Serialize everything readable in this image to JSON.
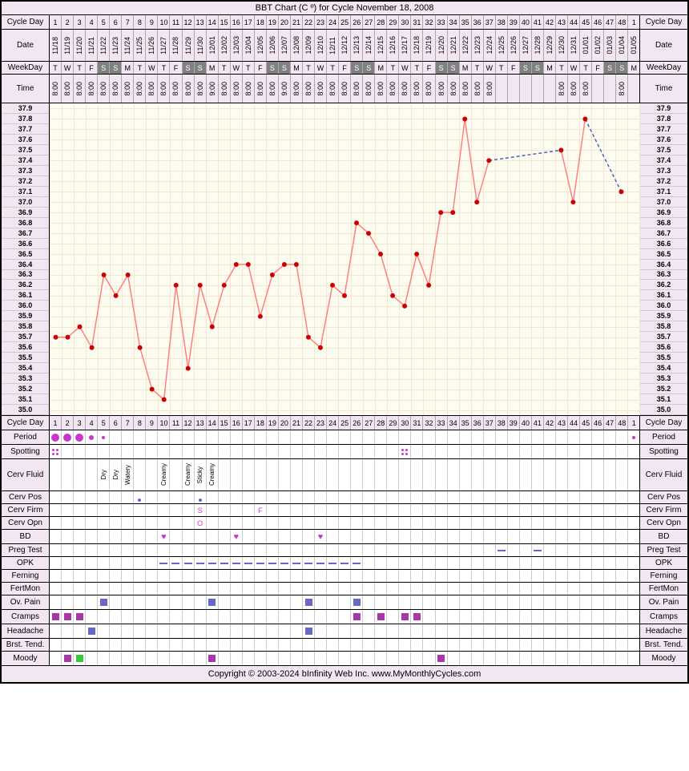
{
  "title": "BBT Chart (C º) for Cycle November 18, 2008",
  "footer": "Copyright © 2003-2024 bInfinity Web Inc.     www.MyMonthlyCycles.com",
  "labels": {
    "cycleDay": "Cycle Day",
    "date": "Date",
    "weekday": "WeekDay",
    "time": "Time",
    "period": "Period",
    "spotting": "Spotting",
    "cervFluid": "Cerv Fluid",
    "cervPos": "Cerv Pos",
    "cervFirm": "Cerv Firm",
    "cervOpn": "Cerv Opn",
    "bd": "BD",
    "pregTest": "Preg Test",
    "opk": "OPK",
    "ferning": "Ferning",
    "fertMon": "FertMon",
    "ovPain": "Ov. Pain",
    "cramps": "Cramps",
    "headache": "Headache",
    "brstTend": "Brst. Tend.",
    "moody": "Moody"
  },
  "chart": {
    "ymin": 35.0,
    "ymax": 37.9,
    "yticks": [
      "37.9",
      "37.8",
      "37.7",
      "37.6",
      "37.5",
      "37.4",
      "37.3",
      "37.2",
      "37.1",
      "37.0",
      "36.9",
      "36.8",
      "36.7",
      "36.6",
      "36.5",
      "36.4",
      "36.3",
      "36.2",
      "36.1",
      "36.0",
      "35.9",
      "35.8",
      "35.7",
      "35.6",
      "35.5",
      "35.4",
      "35.3",
      "35.2",
      "35.1",
      "35.0"
    ],
    "point_color": "#cc0000",
    "line_color": "#ff8080",
    "dashed_color": "#5060c0",
    "bg": "#fdfcf0",
    "grid_color": "#f5e6d0",
    "points": [
      {
        "day": 1,
        "t": 35.7
      },
      {
        "day": 2,
        "t": 35.7
      },
      {
        "day": 3,
        "t": 35.8
      },
      {
        "day": 4,
        "t": 35.6
      },
      {
        "day": 5,
        "t": 36.3
      },
      {
        "day": 6,
        "t": 36.1
      },
      {
        "day": 7,
        "t": 36.3
      },
      {
        "day": 8,
        "t": 35.6
      },
      {
        "day": 9,
        "t": 35.2
      },
      {
        "day": 10,
        "t": 35.1
      },
      {
        "day": 11,
        "t": 36.2
      },
      {
        "day": 12,
        "t": 35.4
      },
      {
        "day": 13,
        "t": 36.2
      },
      {
        "day": 14,
        "t": 35.8
      },
      {
        "day": 15,
        "t": 36.2
      },
      {
        "day": 16,
        "t": 36.4
      },
      {
        "day": 17,
        "t": 36.4
      },
      {
        "day": 18,
        "t": 35.9
      },
      {
        "day": 19,
        "t": 36.3
      },
      {
        "day": 20,
        "t": 36.4
      },
      {
        "day": 21,
        "t": 36.4
      },
      {
        "day": 22,
        "t": 35.7
      },
      {
        "day": 23,
        "t": 35.6
      },
      {
        "day": 24,
        "t": 36.2
      },
      {
        "day": 25,
        "t": 36.1
      },
      {
        "day": 26,
        "t": 36.8
      },
      {
        "day": 27,
        "t": 36.7
      },
      {
        "day": 28,
        "t": 36.5
      },
      {
        "day": 29,
        "t": 36.1
      },
      {
        "day": 30,
        "t": 36.0
      },
      {
        "day": 31,
        "t": 36.5
      },
      {
        "day": 32,
        "t": 36.2
      },
      {
        "day": 33,
        "t": 36.9
      },
      {
        "day": 34,
        "t": 36.9
      },
      {
        "day": 35,
        "t": 37.8
      },
      {
        "day": 36,
        "t": 37.0
      },
      {
        "day": 37,
        "t": 37.4
      },
      {
        "day": 43,
        "t": 37.5
      },
      {
        "day": 44,
        "t": 37.0
      },
      {
        "day": 45,
        "t": 37.8
      },
      {
        "day": 48,
        "t": 37.1
      }
    ],
    "segments": [
      {
        "from": 1,
        "to": 37,
        "dashed": false
      },
      {
        "from": 37,
        "to": 43,
        "dashed": true
      },
      {
        "from": 43,
        "to": 45,
        "dashed": false
      },
      {
        "from": 45,
        "to": 48,
        "dashed": true
      }
    ]
  },
  "days": {
    "count": 49,
    "cycleDays": [
      "1",
      "2",
      "3",
      "4",
      "5",
      "6",
      "7",
      "8",
      "9",
      "10",
      "11",
      "12",
      "13",
      "14",
      "15",
      "16",
      "17",
      "18",
      "19",
      "20",
      "21",
      "22",
      "23",
      "24",
      "25",
      "26",
      "27",
      "28",
      "29",
      "30",
      "31",
      "32",
      "33",
      "34",
      "35",
      "36",
      "37",
      "38",
      "39",
      "40",
      "41",
      "42",
      "43",
      "44",
      "45",
      "46",
      "47",
      "48",
      "1"
    ],
    "dates": [
      "11/18",
      "11/19",
      "11/20",
      "11/21",
      "11/22",
      "11/23",
      "11/24",
      "11/25",
      "11/26",
      "11/27",
      "11/28",
      "11/29",
      "11/30",
      "12/01",
      "12/02",
      "12/03",
      "12/04",
      "12/05",
      "12/06",
      "12/07",
      "12/08",
      "12/09",
      "12/10",
      "12/11",
      "12/12",
      "12/13",
      "12/14",
      "12/15",
      "12/16",
      "12/17",
      "12/18",
      "12/19",
      "12/20",
      "12/21",
      "12/22",
      "12/23",
      "12/24",
      "12/25",
      "12/26",
      "12/27",
      "12/28",
      "12/29",
      "12/30",
      "12/31",
      "01/01",
      "01/02",
      "01/03",
      "01/04",
      "01/05"
    ],
    "weekdays": [
      "T",
      "W",
      "T",
      "F",
      "S",
      "S",
      "M",
      "T",
      "W",
      "T",
      "F",
      "S",
      "S",
      "M",
      "T",
      "W",
      "T",
      "F",
      "S",
      "S",
      "M",
      "T",
      "W",
      "T",
      "F",
      "S",
      "S",
      "M",
      "T",
      "W",
      "T",
      "F",
      "S",
      "S",
      "M",
      "T",
      "W",
      "T",
      "F",
      "S",
      "S",
      "M",
      "T",
      "W",
      "T",
      "F",
      "S",
      "S",
      "M"
    ],
    "weekday_colors": {
      "S": "#808080",
      "default": "#f2e6f2"
    },
    "times": [
      "8:00",
      "8:00",
      "8:00",
      "8:00",
      "8:00",
      "8:00",
      "8:00",
      "8:00",
      "8:00",
      "8:00",
      "8:00",
      "8:00",
      "8:00",
      "9:00",
      "8:00",
      "8:00",
      "8:00",
      "8:00",
      "8:00",
      "9:00",
      "8:00",
      "8:00",
      "8:00",
      "8:00",
      "8:00",
      "8:00",
      "8:00",
      "8:00",
      "8:00",
      "8:00",
      "8:00",
      "8:00",
      "8:00",
      "8:00",
      "8:00",
      "8:00",
      "8:00",
      "",
      "",
      "",
      "",
      "",
      "8:00",
      "8:00",
      "8:00",
      "",
      "",
      "8:00",
      ""
    ]
  },
  "tracks": {
    "period": {
      "type": "period",
      "cells": {
        "1": "heavy",
        "2": "heavy",
        "3": "heavy",
        "4": "light",
        "5": "vlight",
        "49": "vlight2"
      }
    },
    "spotting": {
      "type": "spotting",
      "cells": {
        "1": "spot",
        "30": "spot"
      }
    },
    "cervFluid": {
      "type": "vtext",
      "cells": {
        "5": "Dry",
        "6": "Dry",
        "7": "Watery",
        "10": "Creamy",
        "12": "Creamy",
        "13": "Sticky",
        "14": "Creamy"
      }
    },
    "cervPos": {
      "type": "smalldot",
      "color": "#6868c8",
      "cells": {
        "8": "low",
        "13": "low"
      }
    },
    "cervFirm": {
      "type": "letter",
      "cells": {
        "13": "S",
        "18": "F"
      }
    },
    "cervOpn": {
      "type": "letter",
      "cells": {
        "13": "O"
      }
    },
    "bd": {
      "type": "heart",
      "cells": {
        "10": "♥",
        "16": "♥",
        "23": "♥"
      }
    },
    "pregTest": {
      "type": "dash",
      "color": "#6868c8",
      "cells": {
        "38": "-",
        "41": "-"
      }
    },
    "opk": {
      "type": "dash",
      "color": "#6868c8",
      "cells": {
        "10": "-",
        "11": "-",
        "12": "-",
        "13": "-",
        "14": "-",
        "15": "-",
        "16": "-",
        "17": "-",
        "18": "-",
        "19": "-",
        "20": "-",
        "21": "-",
        "22": "-",
        "23": "-",
        "24": "-",
        "25": "-",
        "26": "-"
      }
    },
    "ferning": {
      "type": "empty"
    },
    "fertMon": {
      "type": "empty"
    },
    "ovPain": {
      "type": "square",
      "color": "#6868c8",
      "cells": {
        "5": "x",
        "14": "x",
        "22": "x",
        "26": "x"
      }
    },
    "cramps": {
      "type": "square",
      "color": "#a838a8",
      "cells": {
        "1": "x",
        "2": "x",
        "3": "x",
        "26": "x",
        "28": "x",
        "30": "x",
        "31": "x"
      }
    },
    "headache": {
      "type": "square",
      "color": "#6868c8",
      "cells": {
        "4": "x",
        "22": "x"
      }
    },
    "brstTend": {
      "type": "empty"
    },
    "moody": {
      "type": "square",
      "cells": {
        "2": {
          "c": "#a838a8"
        },
        "3": {
          "c": "#38c838"
        },
        "14": {
          "c": "#a838a8"
        },
        "33": {
          "c": "#a838a8"
        }
      }
    }
  },
  "colors": {
    "period_heavy": "#c838c8",
    "period_light": "#c838c8",
    "spot": "#c838c8",
    "bg_header": "#f2e6f2",
    "border": "#000000"
  }
}
